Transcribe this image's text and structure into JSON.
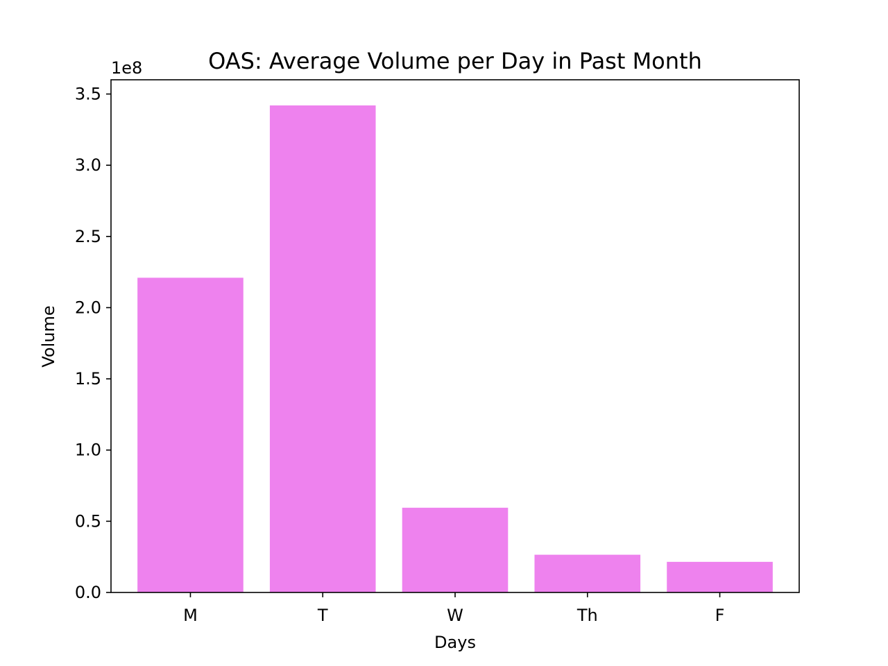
{
  "chart_data": {
    "type": "bar",
    "title": "OAS: Average Volume per Day in Past Month",
    "xlabel": "Days",
    "ylabel": "Volume",
    "categories": [
      "M",
      "T",
      "W",
      "Th",
      "F"
    ],
    "values": [
      221000000,
      342000000,
      59500000,
      26500000,
      21500000
    ],
    "ylim": [
      0,
      360000000
    ],
    "y_offset_label": "1e8",
    "yticks": [
      {
        "value": 0,
        "label": "0.0"
      },
      {
        "value": 50000000,
        "label": "0.5"
      },
      {
        "value": 100000000,
        "label": "1.0"
      },
      {
        "value": 150000000,
        "label": "1.5"
      },
      {
        "value": 200000000,
        "label": "2.0"
      },
      {
        "value": 250000000,
        "label": "2.5"
      },
      {
        "value": 300000000,
        "label": "3.0"
      },
      {
        "value": 350000000,
        "label": "3.5"
      }
    ],
    "bar_color": "#ee82ee",
    "grid": false,
    "legend": "none"
  }
}
